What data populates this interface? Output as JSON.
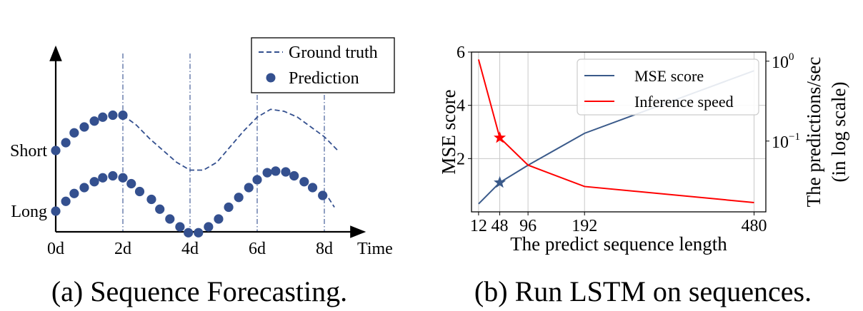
{
  "captions": {
    "a": "(a) Sequence Forecasting.",
    "b": "(b) Run LSTM on sequences."
  },
  "colors": {
    "navy": "#34508f",
    "mse_line": "#3a5a8a",
    "speed_line": "#ff0000",
    "grid": "#c8c8c8"
  },
  "chart_data": [
    {
      "type": "line",
      "xlabel": "Time",
      "ylabel": "",
      "x_ticks": [
        "0d",
        "2d",
        "4d",
        "6d",
        "8d"
      ],
      "y_ticks": [
        "Short",
        "Long"
      ],
      "legend": {
        "placement": "top-right",
        "entries": [
          "Ground truth",
          "Prediction"
        ]
      },
      "series": [
        {
          "name": "Ground truth",
          "style": "dashed",
          "segments": [
            {
              "row": "Short",
              "x": [
                2,
                2.4,
                2.8,
                3.2,
                3.6,
                4,
                4.4,
                4.8,
                5.2,
                5.6,
                6,
                6.4,
                6.8,
                7.2,
                7.6,
                8,
                8.4
              ],
              "y": [
                0.9,
                0.65,
                0.3,
                0.0,
                -0.3,
                -0.5,
                -0.5,
                -0.3,
                0.1,
                0.5,
                0.85,
                1.05,
                1.0,
                0.85,
                0.6,
                0.35,
                0.0
              ]
            },
            {
              "row": "Long",
              "x": [
                8,
                8.3
              ],
              "y": [
                0.5,
                0.1
              ]
            }
          ]
        },
        {
          "name": "Prediction",
          "style": "markers",
          "segments": [
            {
              "row": "Short",
              "x": [
                0,
                0.3,
                0.55,
                0.85,
                1.15,
                1.4,
                1.7,
                2
              ],
              "y": [
                0.0,
                0.2,
                0.45,
                0.6,
                0.75,
                0.85,
                0.9,
                0.9
              ]
            },
            {
              "row": "Long",
              "x": [
                0,
                0.3,
                0.55,
                0.85,
                1.15,
                1.4,
                1.7,
                2,
                2.25,
                2.5,
                2.85,
                3.1,
                3.4,
                3.7,
                3.95,
                4.25,
                4.55,
                4.85,
                5.15,
                5.45,
                5.75,
                6,
                6.3,
                6.55,
                6.85,
                7.1,
                7.4,
                7.65,
                7.95
              ],
              "y": [
                0.0,
                0.25,
                0.45,
                0.6,
                0.75,
                0.85,
                0.9,
                0.85,
                0.7,
                0.5,
                0.3,
                0.05,
                -0.2,
                -0.4,
                -0.55,
                -0.55,
                -0.4,
                -0.2,
                0.1,
                0.35,
                0.6,
                0.8,
                0.98,
                1.02,
                1.0,
                0.9,
                0.75,
                0.6,
                0.4
              ]
            }
          ]
        }
      ]
    },
    {
      "type": "line",
      "xlabel": "The predict sequence length",
      "ylabel": "MSE score",
      "ylabel_right": [
        "The predictions/sec",
        "(in log scale)"
      ],
      "x_ticks": [
        12,
        48,
        96,
        192,
        480
      ],
      "xlim": [
        0,
        500
      ],
      "y_ticks": [
        2,
        4,
        6
      ],
      "ylim": [
        0,
        6
      ],
      "y_right_ticks": [
        "10",
        "10"
      ],
      "y_right_tick_exponents": [
        "0",
        "−1"
      ],
      "y_right_scale": "log",
      "y_right_lim": [
        0.013,
        1.3
      ],
      "y_right_tick_values": [
        1,
        0.1
      ],
      "grid": true,
      "legend": {
        "placement": "top-right",
        "entries": [
          "MSE score",
          "Inference speed"
        ]
      },
      "series": [
        {
          "name": "MSE score",
          "axis": "left",
          "x": [
            12,
            48,
            96,
            192,
            480
          ],
          "y": [
            0.3,
            1.1,
            1.75,
            2.95,
            5.3
          ],
          "marker_at_x": 48
        },
        {
          "name": "Inference speed",
          "axis": "right",
          "x": [
            12,
            48,
            96,
            192,
            480
          ],
          "y": [
            1.05,
            0.11,
            0.05,
            0.027,
            0.017
          ],
          "marker_at_x": 48
        }
      ]
    }
  ]
}
